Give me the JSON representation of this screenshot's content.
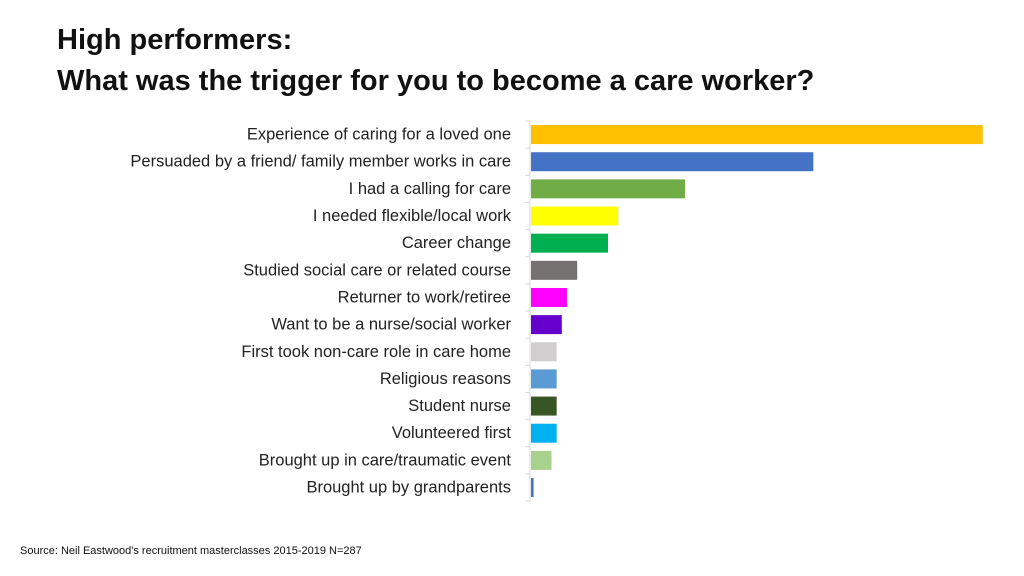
{
  "title": {
    "line1": "High performers:",
    "line2": "What was the trigger for you to become a care worker?"
  },
  "source": "Source: Neil Eastwood's recruitment masterclasses 2015-2019 N=287",
  "chart_data": {
    "type": "bar",
    "orientation": "horizontal",
    "title": "What was the trigger for you to become a care worker?",
    "xlabel": "",
    "ylabel": "",
    "xlim": [
      0,
      90
    ],
    "grid": false,
    "legend": "none",
    "categories": [
      "Experience of caring for a loved one",
      "Persuaded by a friend/ family member works in care",
      "I had a calling for care",
      "I needed flexible/local work",
      "Career change",
      "Studied social care or related course",
      "Returner to work/retiree",
      "Want to be a nurse/social worker",
      "First took non-care role in care home",
      "Religious reasons",
      "Student nurse",
      "Volunteered first",
      "Brought up in care/traumatic event",
      "Brought up by grandparents"
    ],
    "values": [
      88,
      55,
      30,
      17,
      15,
      9,
      7,
      6,
      5,
      5,
      5,
      5,
      4,
      0.5
    ],
    "colors": [
      "#FFC000",
      "#4472C4",
      "#70AD47",
      "#FFFF00",
      "#00B050",
      "#767171",
      "#FF00FF",
      "#6600CC",
      "#D0CECE",
      "#5B9BD5",
      "#375623",
      "#00B0F0",
      "#A9D18E",
      "#4472C4"
    ]
  }
}
